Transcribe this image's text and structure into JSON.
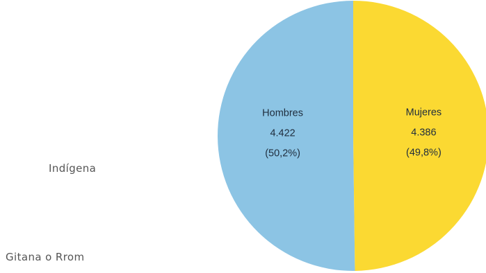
{
  "side_labels": {
    "indigena": "Indígena",
    "gitana": "Gitana o Rrom"
  },
  "chart_data": {
    "type": "pie",
    "title": "",
    "slices": [
      {
        "name": "Hombres",
        "value": 4422,
        "value_label": "4.422",
        "percent": 50.2,
        "percent_label": "(50,2%)",
        "color": "#8cc4e4"
      },
      {
        "name": "Mujeres",
        "value": 4386,
        "value_label": "4.386",
        "percent": 49.8,
        "percent_label": "(49,8%)",
        "color": "#fbd932"
      }
    ],
    "legend": "none"
  }
}
